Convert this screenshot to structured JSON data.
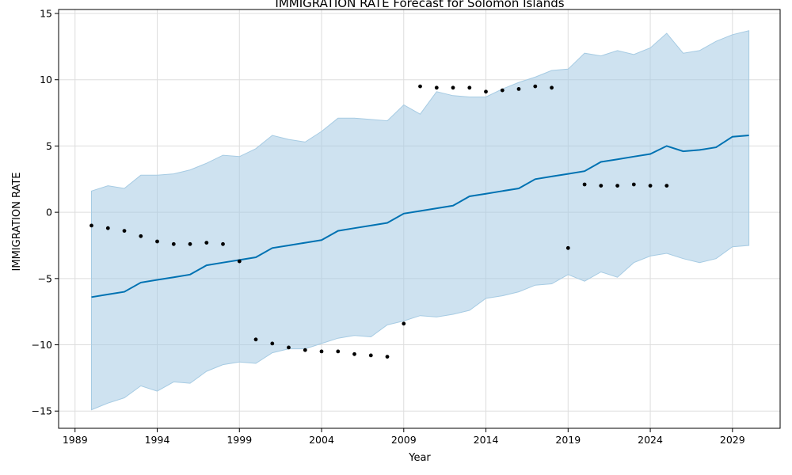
{
  "chart_data": {
    "type": "line",
    "title": "IMMIGRATION RATE Forecast for Solomon Islands",
    "xlabel": "Year",
    "ylabel": "IMMIGRATION RATE",
    "xlim": [
      1988.0,
      2031.9
    ],
    "ylim": [
      -16.3,
      15.3
    ],
    "x_ticks": [
      1989,
      1994,
      1999,
      2004,
      2009,
      2014,
      2019,
      2024,
      2029
    ],
    "y_ticks": [
      -15,
      -10,
      -5,
      0,
      5,
      10,
      15
    ],
    "grid": true,
    "colors": {
      "forecast": "#0072B2",
      "band": "#a6cbe3",
      "points": "#000000",
      "grid": "#dddddd"
    },
    "forecast": {
      "x": [
        1990,
        1991,
        1992,
        1993,
        1994,
        1995,
        1996,
        1997,
        1998,
        1999,
        2000,
        2001,
        2002,
        2003,
        2004,
        2005,
        2006,
        2007,
        2008,
        2009,
        2010,
        2011,
        2012,
        2013,
        2014,
        2015,
        2016,
        2017,
        2018,
        2019,
        2020,
        2021,
        2022,
        2023,
        2024,
        2025,
        2026,
        2027,
        2028,
        2029,
        2030
      ],
      "yhat": [
        -6.4,
        -6.2,
        -6.0,
        -5.3,
        -5.1,
        -4.9,
        -4.7,
        -4.0,
        -3.8,
        -3.6,
        -3.4,
        -2.7,
        -2.5,
        -2.3,
        -2.1,
        -1.4,
        -1.2,
        -1.0,
        -0.8,
        -0.1,
        0.1,
        0.3,
        0.5,
        1.2,
        1.4,
        1.6,
        1.8,
        2.5,
        2.7,
        2.9,
        3.1,
        3.8,
        4.0,
        4.2,
        4.4,
        5.0,
        4.6,
        4.7,
        4.9,
        5.7,
        5.8
      ],
      "lower": [
        -14.9,
        -14.4,
        -14.0,
        -13.1,
        -13.5,
        -12.8,
        -12.9,
        -12.0,
        -11.5,
        -11.3,
        -11.4,
        -10.6,
        -10.3,
        -10.3,
        -9.9,
        -9.5,
        -9.3,
        -9.4,
        -8.5,
        -8.2,
        -7.8,
        -7.9,
        -7.7,
        -7.4,
        -6.5,
        -6.3,
        -6.0,
        -5.5,
        -5.4,
        -4.7,
        -5.2,
        -4.5,
        -4.9,
        -3.8,
        -3.3,
        -3.1,
        -3.5,
        -3.8,
        -3.5,
        -2.6,
        -2.5
      ],
      "upper": [
        1.6,
        2.0,
        1.8,
        2.8,
        2.8,
        2.9,
        3.2,
        3.7,
        4.3,
        4.2,
        4.8,
        5.8,
        5.5,
        5.3,
        6.1,
        7.1,
        7.1,
        7.0,
        6.9,
        8.1,
        7.4,
        9.1,
        8.8,
        8.7,
        8.7,
        9.3,
        9.8,
        10.2,
        10.7,
        10.8,
        12.0,
        11.8,
        12.2,
        11.9,
        12.4,
        13.5,
        12.0,
        12.2,
        12.9,
        13.4,
        13.7
      ]
    },
    "observed": {
      "x": [
        1990,
        1991,
        1992,
        1993,
        1994,
        1995,
        1996,
        1997,
        1998,
        1999,
        2000,
        2001,
        2002,
        2003,
        2004,
        2005,
        2006,
        2007,
        2008,
        2009,
        2010,
        2011,
        2012,
        2013,
        2014,
        2015,
        2016,
        2017,
        2018,
        2019,
        2020,
        2021,
        2022,
        2023,
        2024,
        2025
      ],
      "y": [
        -1.0,
        -1.2,
        -1.4,
        -1.8,
        -2.2,
        -2.4,
        -2.4,
        -2.3,
        -2.4,
        -3.7,
        -9.6,
        -9.9,
        -10.2,
        -10.4,
        -10.5,
        -10.5,
        -10.7,
        -10.8,
        -10.9,
        -8.4,
        9.5,
        9.4,
        9.4,
        9.4,
        9.1,
        9.2,
        9.3,
        9.5,
        9.4,
        -2.7,
        2.1,
        2.0,
        2.0,
        2.1,
        2.0,
        2.0
      ]
    }
  }
}
